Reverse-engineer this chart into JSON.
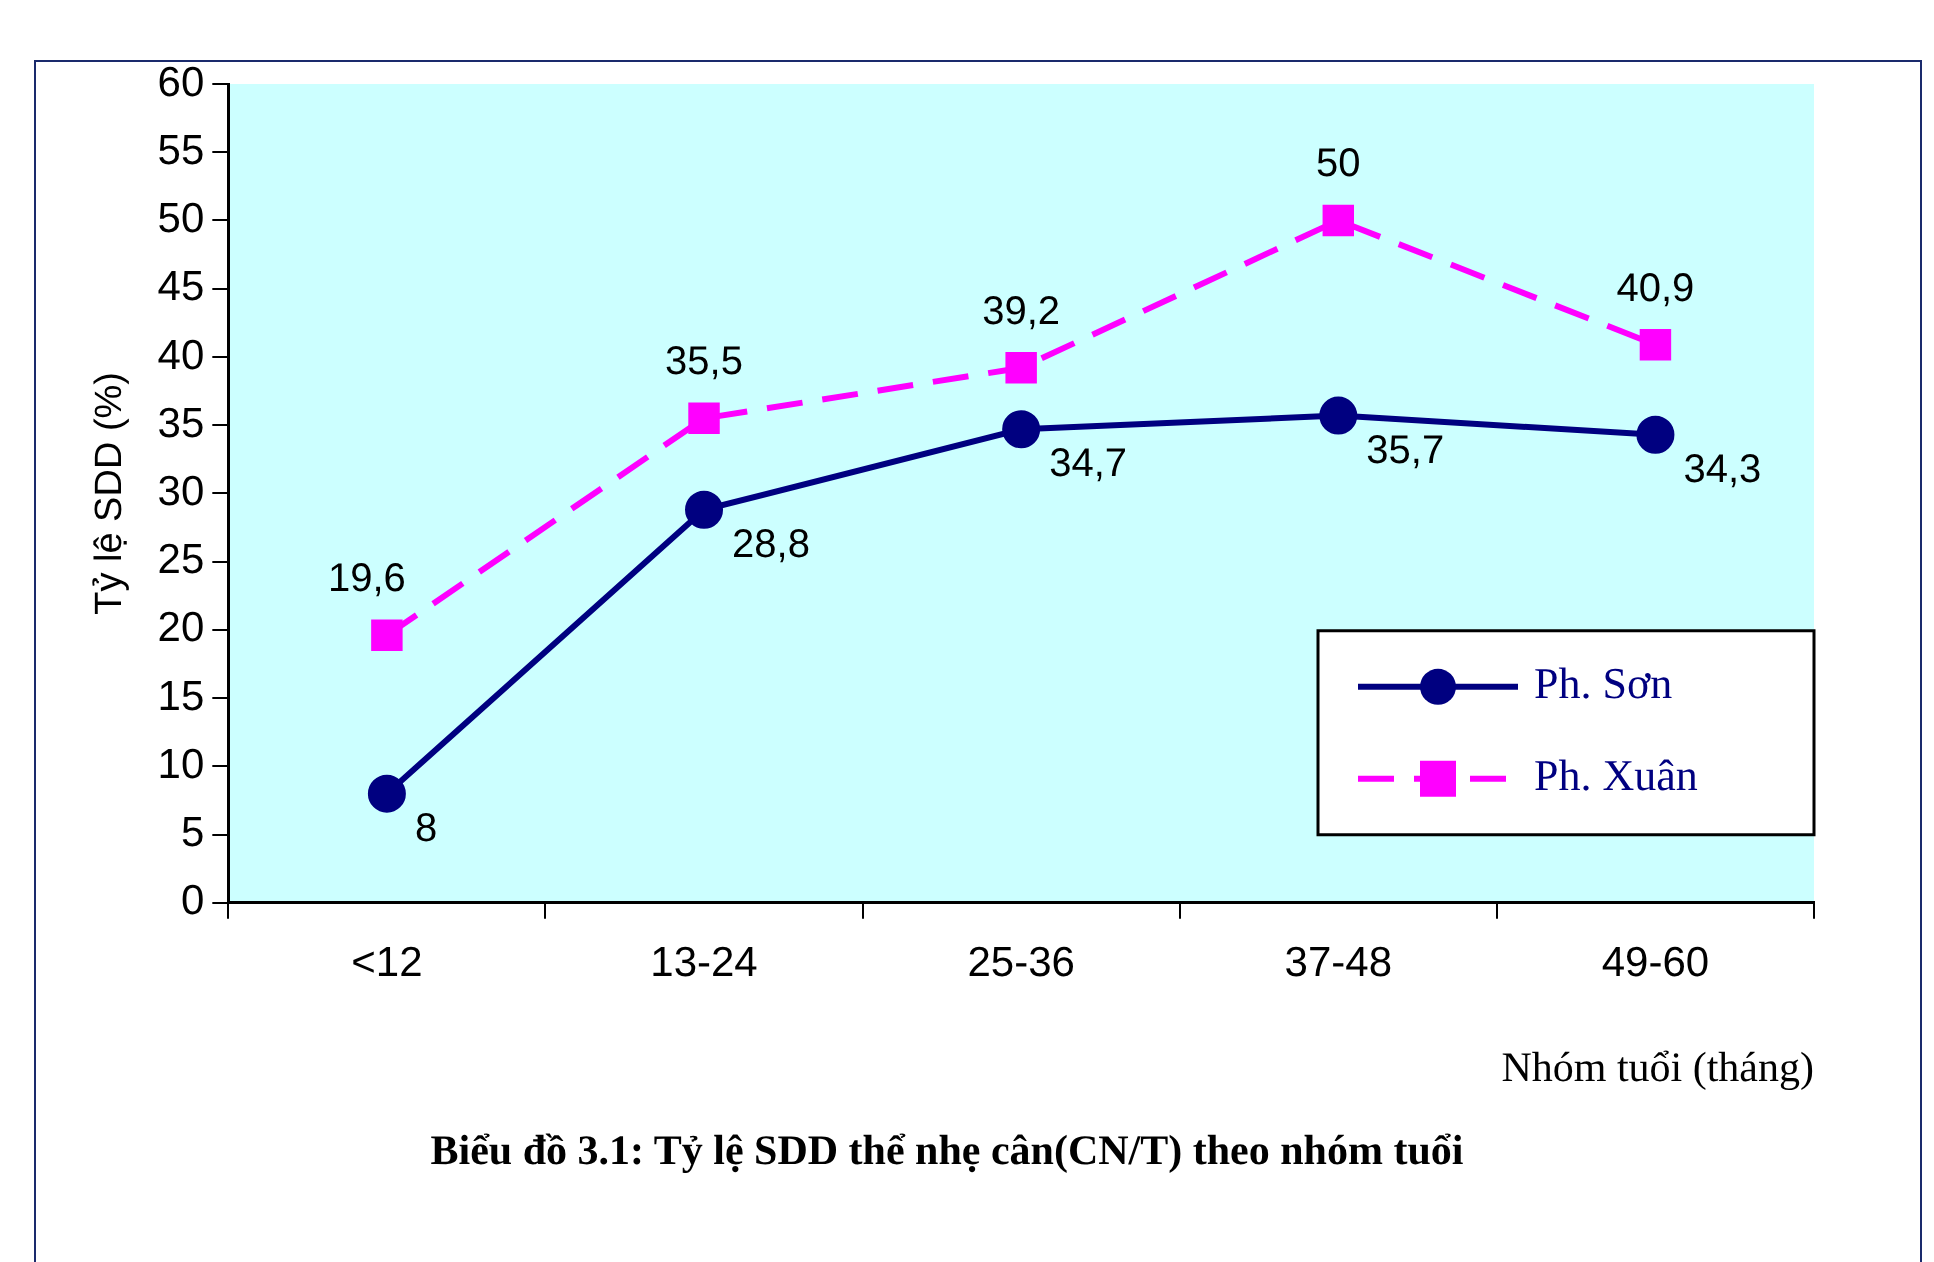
{
  "chart_data": {
    "type": "line",
    "title": "Biểu đồ 3.1: Tỷ lệ SDD thể nhẹ cân(CN/T) theo nhóm tuổi",
    "xlabel": "Nhóm tuổi (tháng)",
    "ylabel": "Tỷ lệ SDD (%)",
    "categories": [
      "<12",
      "13-24",
      "25-36",
      "37-48",
      "49-60"
    ],
    "series": [
      {
        "name": "Ph. Sơn",
        "color": "#000080",
        "marker": "circle",
        "line_style": "solid",
        "values": [
          8,
          28.8,
          34.7,
          35.7,
          34.3
        ],
        "value_labels": [
          "8",
          "28,8",
          "34,7",
          "35,7",
          "34,3"
        ]
      },
      {
        "name": "Ph. Xuân",
        "color": "#ff00ff",
        "marker": "square",
        "line_style": "dashed",
        "values": [
          19.6,
          35.5,
          39.2,
          50,
          40.9
        ],
        "value_labels": [
          "19,6",
          "35,5",
          "39,2",
          "50",
          "40,9"
        ]
      }
    ],
    "ylim": [
      0,
      60
    ],
    "yticks": [
      0,
      5,
      10,
      15,
      20,
      25,
      30,
      35,
      40,
      45,
      50,
      55,
      60
    ],
    "grid": false,
    "legend": "bottom right"
  }
}
